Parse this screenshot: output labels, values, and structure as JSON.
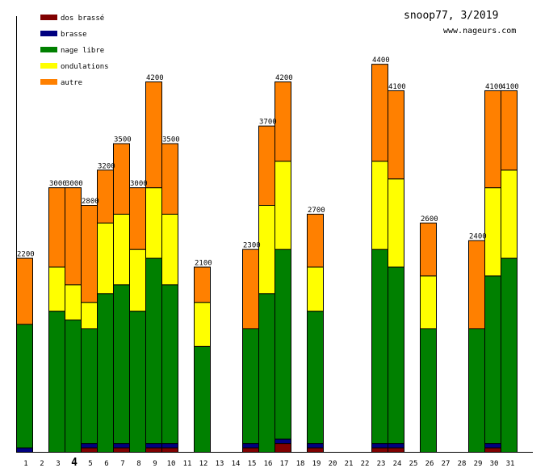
{
  "chart_data": {
    "type": "bar",
    "stacked": true,
    "title": "snoop77, 3/2019",
    "subtitle": "www.nageurs.com",
    "xlabel": "",
    "ylabel": "",
    "ylim": [
      0,
      4600
    ],
    "grid": false,
    "legend_position": "top-left",
    "highlighted_category": "4",
    "categories": [
      "1",
      "2",
      "3",
      "4",
      "5",
      "6",
      "7",
      "8",
      "9",
      "10",
      "11",
      "12",
      "13",
      "14",
      "15",
      "16",
      "17",
      "18",
      "19",
      "20",
      "21",
      "22",
      "23",
      "24",
      "25",
      "26",
      "27",
      "28",
      "29",
      "30",
      "31"
    ],
    "totals": [
      2200,
      0,
      3000,
      3000,
      2800,
      3200,
      3500,
      3000,
      4200,
      3500,
      0,
      2100,
      0,
      0,
      2300,
      3700,
      4200,
      0,
      2700,
      0,
      0,
      0,
      4400,
      4100,
      0,
      2600,
      0,
      0,
      2400,
      4100,
      4100
    ],
    "series": [
      {
        "name": "dos brassé",
        "color": "#800000",
        "values": [
          0,
          0,
          0,
          0,
          50,
          0,
          50,
          0,
          50,
          50,
          0,
          0,
          0,
          0,
          50,
          0,
          100,
          0,
          50,
          0,
          0,
          0,
          50,
          50,
          0,
          0,
          0,
          0,
          0,
          50,
          0
        ]
      },
      {
        "name": "brasse",
        "color": "#000080",
        "values": [
          50,
          0,
          0,
          0,
          50,
          0,
          50,
          0,
          50,
          50,
          0,
          0,
          0,
          0,
          50,
          0,
          50,
          0,
          50,
          0,
          0,
          0,
          50,
          50,
          0,
          0,
          0,
          0,
          0,
          50,
          0
        ]
      },
      {
        "name": "nage libre",
        "color": "#008000",
        "values": [
          1400,
          0,
          1600,
          1500,
          1300,
          1800,
          1800,
          1600,
          2100,
          1800,
          0,
          1200,
          0,
          0,
          1300,
          1800,
          2150,
          0,
          1500,
          0,
          0,
          0,
          2200,
          2000,
          0,
          1400,
          0,
          0,
          1400,
          1900,
          2200
        ]
      },
      {
        "name": "ondulations",
        "color": "#ffff00",
        "values": [
          0,
          0,
          500,
          400,
          300,
          800,
          800,
          700,
          800,
          800,
          0,
          500,
          0,
          0,
          0,
          1000,
          1000,
          0,
          500,
          0,
          0,
          0,
          1000,
          1000,
          0,
          600,
          0,
          0,
          0,
          1000,
          1000
        ]
      },
      {
        "name": "autre",
        "color": "#ff8000",
        "values": [
          750,
          0,
          900,
          1100,
          1100,
          600,
          800,
          700,
          1200,
          800,
          0,
          400,
          0,
          0,
          900,
          900,
          900,
          0,
          600,
          0,
          0,
          0,
          1100,
          1000,
          0,
          600,
          0,
          0,
          1000,
          1100,
          900
        ]
      }
    ]
  }
}
